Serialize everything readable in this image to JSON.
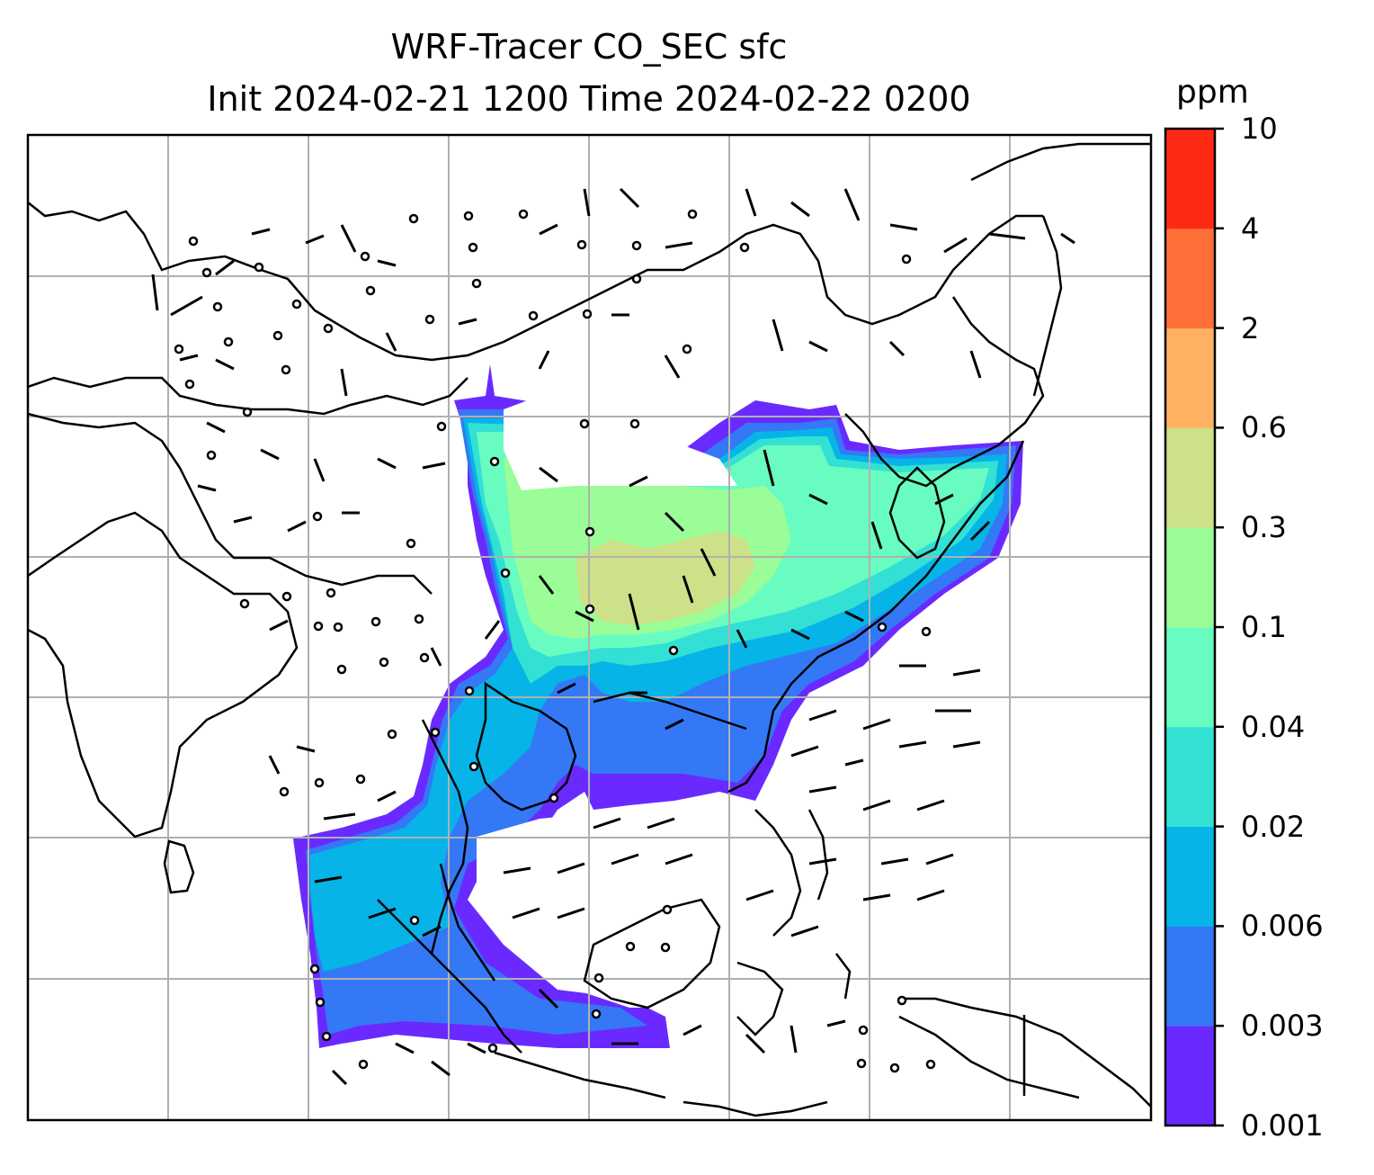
{
  "title": {
    "line1": "WRF-Tracer CO_SEC sfc",
    "line2": "Init 2024-02-21 1200 Time 2024-02-22 0200"
  },
  "colorbar": {
    "unit": "ppm",
    "labels": [
      "0.001",
      "0.003",
      "0.006",
      "0.02",
      "0.04",
      "0.1",
      "0.3",
      "0.6",
      "2",
      "4",
      "10"
    ],
    "colors": [
      "#6a2aff",
      "#3478f6",
      "#06b4e8",
      "#33e0d4",
      "#69fcc0",
      "#9afd98",
      "#cde188",
      "#feb160",
      "#fe7038",
      "#fe2a16"
    ]
  },
  "map": {
    "projection": "lat-lon",
    "gridlines": true,
    "wind_barbs": true,
    "coastlines": true,
    "tracer_field": "CO_SEC"
  }
}
